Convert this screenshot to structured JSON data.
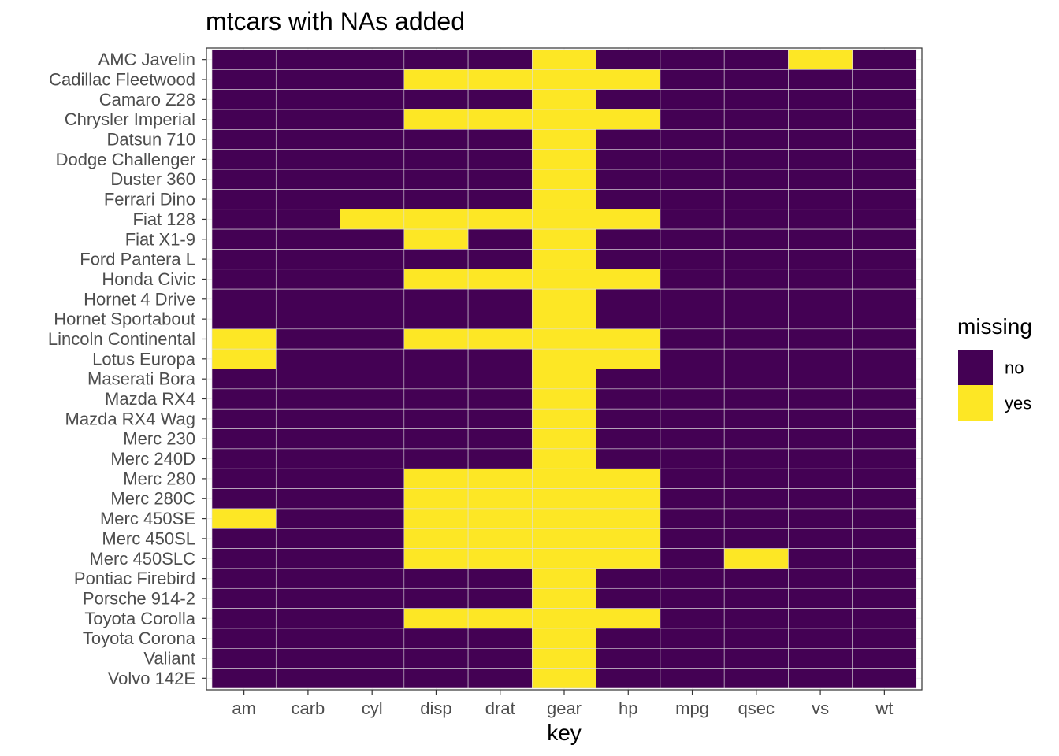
{
  "chart_data": {
    "type": "heatmap",
    "title": "mtcars with NAs added",
    "xlabel": "key",
    "ylabel": "",
    "x_categories": [
      "am",
      "carb",
      "cyl",
      "disp",
      "drat",
      "gear",
      "hp",
      "mpg",
      "qsec",
      "vs",
      "wt"
    ],
    "y_categories": [
      "AMC Javelin",
      "Cadillac Fleetwood",
      "Camaro Z28",
      "Chrysler Imperial",
      "Datsun 710",
      "Dodge Challenger",
      "Duster 360",
      "Ferrari Dino",
      "Fiat 128",
      "Fiat X1-9",
      "Ford Pantera L",
      "Honda Civic",
      "Hornet 4 Drive",
      "Hornet Sportabout",
      "Lincoln Continental",
      "Lotus Europa",
      "Maserati Bora",
      "Mazda RX4",
      "Mazda RX4 Wag",
      "Merc 230",
      "Merc 240D",
      "Merc 280",
      "Merc 280C",
      "Merc 450SE",
      "Merc 450SL",
      "Merc 450SLC",
      "Pontiac Firebird",
      "Porsche 914-2",
      "Toyota Corolla",
      "Toyota Corona",
      "Valiant",
      "Volvo 142E"
    ],
    "missing": [
      [
        0,
        0,
        0,
        0,
        0,
        1,
        0,
        0,
        0,
        1,
        0
      ],
      [
        0,
        0,
        0,
        1,
        1,
        1,
        1,
        0,
        0,
        0,
        0
      ],
      [
        0,
        0,
        0,
        0,
        0,
        1,
        0,
        0,
        0,
        0,
        0
      ],
      [
        0,
        0,
        0,
        1,
        1,
        1,
        1,
        0,
        0,
        0,
        0
      ],
      [
        0,
        0,
        0,
        0,
        0,
        1,
        0,
        0,
        0,
        0,
        0
      ],
      [
        0,
        0,
        0,
        0,
        0,
        1,
        0,
        0,
        0,
        0,
        0
      ],
      [
        0,
        0,
        0,
        0,
        0,
        1,
        0,
        0,
        0,
        0,
        0
      ],
      [
        0,
        0,
        0,
        0,
        0,
        1,
        0,
        0,
        0,
        0,
        0
      ],
      [
        0,
        0,
        1,
        1,
        1,
        1,
        1,
        0,
        0,
        0,
        0
      ],
      [
        0,
        0,
        0,
        1,
        0,
        1,
        0,
        0,
        0,
        0,
        0
      ],
      [
        0,
        0,
        0,
        0,
        0,
        1,
        0,
        0,
        0,
        0,
        0
      ],
      [
        0,
        0,
        0,
        1,
        1,
        1,
        1,
        0,
        0,
        0,
        0
      ],
      [
        0,
        0,
        0,
        0,
        0,
        1,
        0,
        0,
        0,
        0,
        0
      ],
      [
        0,
        0,
        0,
        0,
        0,
        1,
        0,
        0,
        0,
        0,
        0
      ],
      [
        1,
        0,
        0,
        1,
        1,
        1,
        1,
        0,
        0,
        0,
        0
      ],
      [
        1,
        0,
        0,
        0,
        0,
        1,
        1,
        0,
        0,
        0,
        0
      ],
      [
        0,
        0,
        0,
        0,
        0,
        1,
        0,
        0,
        0,
        0,
        0
      ],
      [
        0,
        0,
        0,
        0,
        0,
        1,
        0,
        0,
        0,
        0,
        0
      ],
      [
        0,
        0,
        0,
        0,
        0,
        1,
        0,
        0,
        0,
        0,
        0
      ],
      [
        0,
        0,
        0,
        0,
        0,
        1,
        0,
        0,
        0,
        0,
        0
      ],
      [
        0,
        0,
        0,
        0,
        0,
        1,
        0,
        0,
        0,
        0,
        0
      ],
      [
        0,
        0,
        0,
        1,
        1,
        1,
        1,
        0,
        0,
        0,
        0
      ],
      [
        0,
        0,
        0,
        1,
        1,
        1,
        1,
        0,
        0,
        0,
        0
      ],
      [
        1,
        0,
        0,
        1,
        1,
        1,
        1,
        0,
        0,
        0,
        0
      ],
      [
        0,
        0,
        0,
        1,
        1,
        1,
        1,
        0,
        0,
        0,
        0
      ],
      [
        0,
        0,
        0,
        1,
        1,
        1,
        1,
        0,
        1,
        0,
        0
      ],
      [
        0,
        0,
        0,
        0,
        0,
        1,
        0,
        0,
        0,
        0,
        0
      ],
      [
        0,
        0,
        0,
        0,
        0,
        1,
        0,
        0,
        0,
        0,
        0
      ],
      [
        0,
        0,
        0,
        1,
        1,
        1,
        1,
        0,
        0,
        0,
        0
      ],
      [
        0,
        0,
        0,
        0,
        0,
        1,
        0,
        0,
        0,
        0,
        0
      ],
      [
        0,
        0,
        0,
        0,
        0,
        1,
        0,
        0,
        0,
        0,
        0
      ],
      [
        0,
        0,
        0,
        0,
        0,
        1,
        0,
        0,
        0,
        0,
        0
      ]
    ],
    "legend": {
      "title": "missing",
      "position": "right",
      "entries": [
        {
          "label": "no",
          "color": "#440154"
        },
        {
          "label": "yes",
          "color": "#FDE725"
        }
      ]
    },
    "grid": true
  },
  "colors": {
    "no": "#440154",
    "yes": "#FDE725",
    "panel_border": "#333333",
    "grid": "#EBEBEB",
    "tile_border": "#DDDDDD"
  }
}
